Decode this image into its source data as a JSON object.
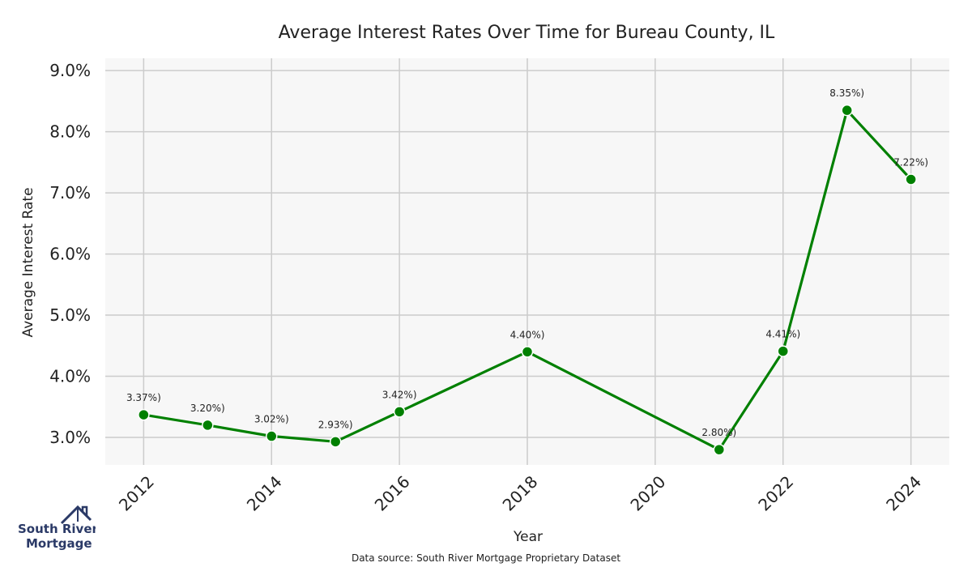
{
  "chart_data": {
    "type": "line",
    "title": "Average Interest Rates Over Time for Bureau County, IL",
    "xlabel": "Year",
    "ylabel": "Average Interest Rate",
    "x": [
      2012,
      2013,
      2014,
      2015,
      2016,
      2018,
      2021,
      2022,
      2023,
      2024
    ],
    "values": [
      3.37,
      3.2,
      3.02,
      2.93,
      3.42,
      4.4,
      2.8,
      4.41,
      8.35,
      7.22
    ],
    "data_labels": [
      "3.37%)",
      "3.20%)",
      "3.02%)",
      "2.93%)",
      "3.42%)",
      "4.40%)",
      "2.80%)",
      "4.41%)",
      "8.35%)",
      "7.22%)"
    ],
    "x_ticks": [
      2012,
      2014,
      2016,
      2018,
      2020,
      2022,
      2024
    ],
    "y_ticks": [
      3.0,
      4.0,
      5.0,
      6.0,
      7.0,
      8.0,
      9.0
    ],
    "y_tick_labels": [
      "3.0%",
      "4.0%",
      "5.0%",
      "6.0%",
      "7.0%",
      "8.0%",
      "9.0%"
    ],
    "xlim": [
      2011.4,
      2024.6
    ],
    "ylim": [
      2.55,
      9.2
    ],
    "grid": true,
    "line_color": "#008000",
    "plot_background": "#f7f7f7",
    "grid_color": "#cccccc"
  },
  "source_note": "Data source: South River Mortgage Proprietary Dataset",
  "logo": {
    "line1": "South River",
    "line2": "Mortgage",
    "icon": "house-icon"
  }
}
